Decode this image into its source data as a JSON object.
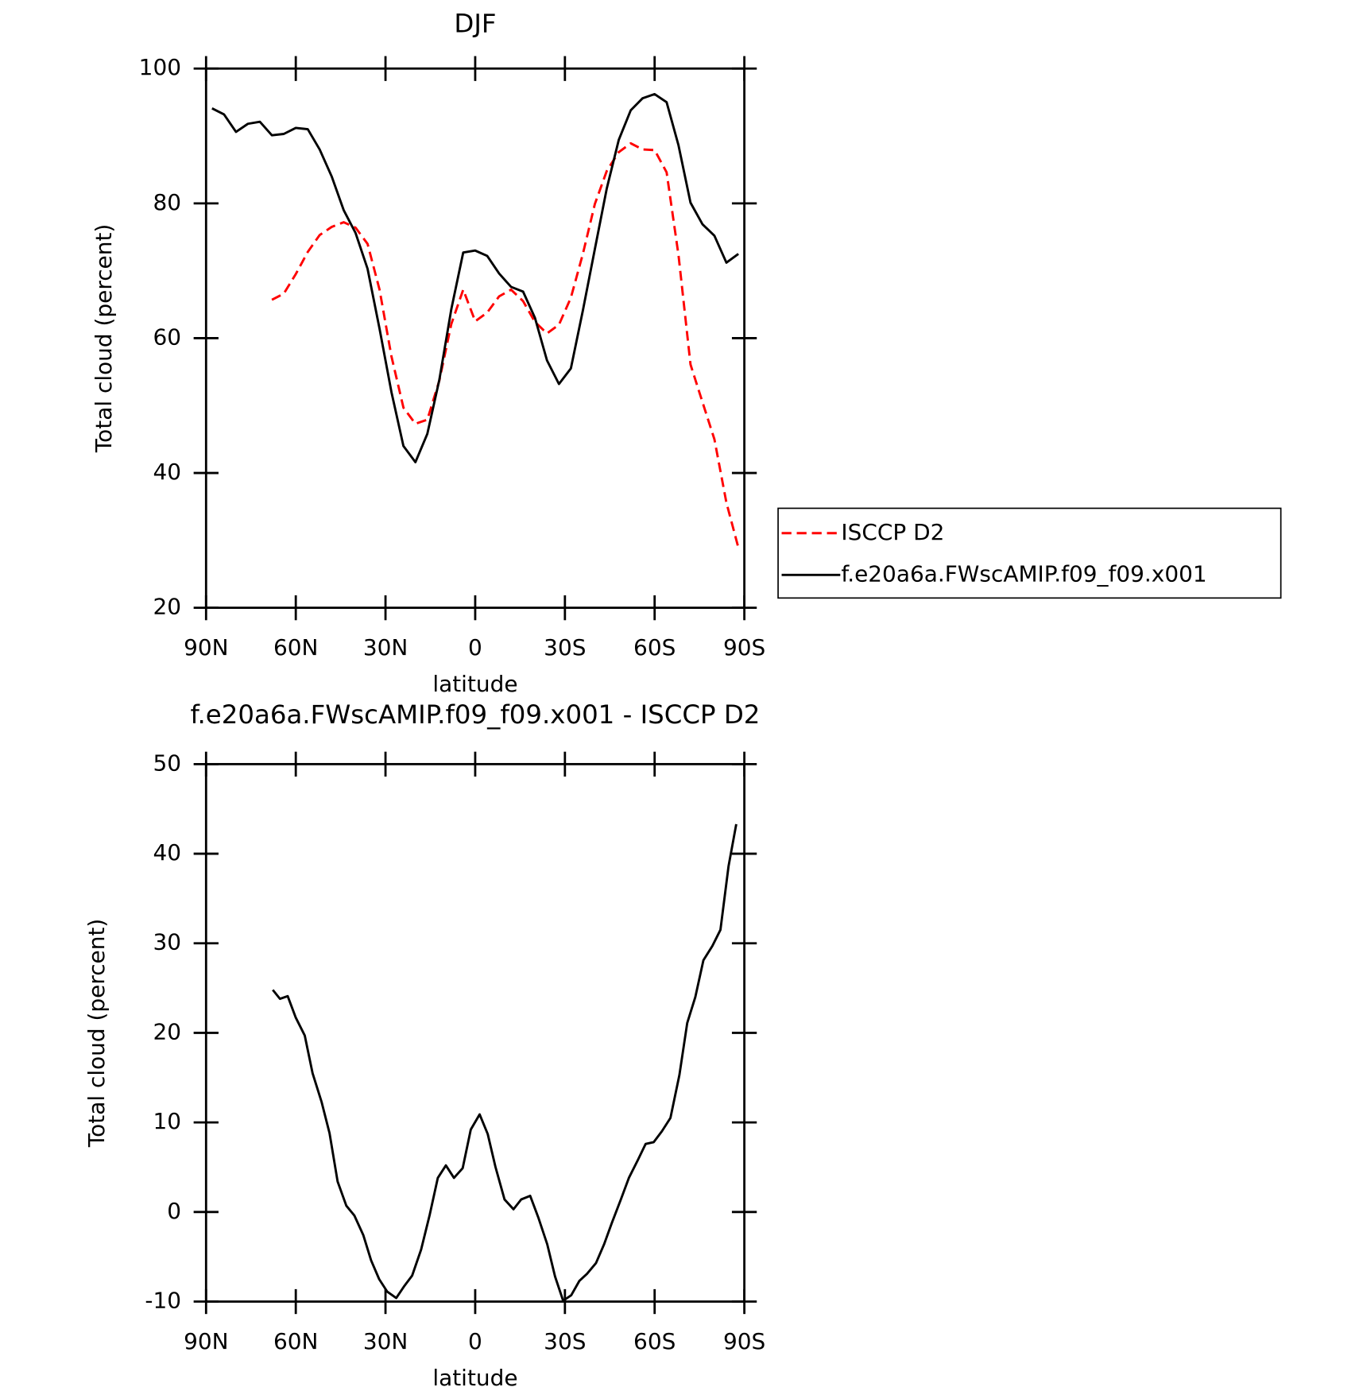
{
  "chart_data": [
    {
      "type": "line",
      "title": "DJF",
      "xlabel": "latitude",
      "ylabel": "Total cloud (percent)",
      "x": [
        88,
        84,
        80,
        76,
        72,
        68,
        64,
        60,
        56,
        52,
        48,
        44,
        40,
        36,
        32,
        28,
        24,
        20,
        16,
        12,
        8,
        4,
        0,
        -4,
        -8,
        -12,
        -16,
        -20,
        -24,
        -28,
        -32,
        -36,
        -40,
        -44,
        -48,
        -52,
        -56,
        -60,
        -64,
        -68,
        -72,
        -76,
        -80,
        -84,
        -88
      ],
      "xlim": [
        90,
        -90
      ],
      "xticks": [
        {
          "value": 90,
          "label": "90N"
        },
        {
          "value": 60,
          "label": "60N"
        },
        {
          "value": 30,
          "label": "30N"
        },
        0,
        {
          "value": -30,
          "label": "30S"
        },
        {
          "value": -60,
          "label": "60S"
        },
        {
          "value": -90,
          "label": "90S"
        }
      ],
      "ylim": [
        20,
        100
      ],
      "yticks": [
        20,
        40,
        60,
        80,
        100
      ],
      "legend": "right",
      "series": [
        {
          "name": "ISCCP D2",
          "color": "#ff0000",
          "dashed": true,
          "values": [
            null,
            null,
            null,
            null,
            null,
            65.7,
            66.6,
            69.5,
            72.8,
            75.3,
            76.5,
            77.2,
            76.4,
            74.0,
            67.2,
            57.3,
            49.7,
            47.3,
            47.9,
            53.7,
            62.1,
            67.2,
            62.5,
            63.8,
            66.2,
            67.2,
            65.5,
            62.4,
            60.7,
            62.0,
            66.0,
            72.5,
            79.9,
            84.8,
            87.6,
            88.9,
            88.0,
            87.9,
            84.6,
            72.3,
            56.1,
            50.5,
            45.0,
            35.6,
            28.9
          ]
        },
        {
          "name": "f.e20a6a.FWscAMIP.f09_f09.x001",
          "color": "#000000",
          "dashed": false,
          "values": [
            94.1,
            93.2,
            90.6,
            91.8,
            92.1,
            90.1,
            90.3,
            91.2,
            91.0,
            88.0,
            84.0,
            79.0,
            75.6,
            70.3,
            61.4,
            52.0,
            44.0,
            41.6,
            45.8,
            53.8,
            64.3,
            72.7,
            73.0,
            72.2,
            69.6,
            67.6,
            66.9,
            63.0,
            56.7,
            53.2,
            55.5,
            64.1,
            73.2,
            82.2,
            89.4,
            93.8,
            95.6,
            96.2,
            95.0,
            88.6,
            80.1,
            76.9,
            75.2,
            71.2,
            72.5
          ]
        }
      ]
    },
    {
      "type": "line",
      "title": "f.e20a6a.FWscAMIP.f09_f09.x001 - ISCCP D2",
      "xlabel": "latitude",
      "ylabel": "Total cloud (percent)",
      "x": [
        67.7,
        65.3,
        62.7,
        60,
        57,
        54.4,
        51.4,
        48.7,
        46,
        43.1,
        40.4,
        37.4,
        34.8,
        32.1,
        29.4,
        26.4,
        23.8,
        21.1,
        18.1,
        15.2,
        12.5,
        9.8,
        7.1,
        4.2,
        1.5,
        -1.5,
        -4.2,
        -6.8,
        -9.8,
        -12.8,
        -15.4,
        -18.4,
        -21.1,
        -24.1,
        -26.7,
        -29.4,
        -32.1,
        -34.8,
        -37.4,
        -40.4,
        -43.1,
        -45.7,
        -48.7,
        -51.4,
        -54.4,
        -57,
        -59.7,
        -62.4,
        -65.3,
        -68.3,
        -70.9,
        -73.6,
        -76.3,
        -79.3,
        -82,
        -84.7,
        -87.3
      ],
      "xlim": [
        90,
        -90
      ],
      "xticks": [
        {
          "value": 90,
          "label": "90N"
        },
        {
          "value": 60,
          "label": "60N"
        },
        {
          "value": 30,
          "label": "30N"
        },
        0,
        {
          "value": -30,
          "label": "30S"
        },
        {
          "value": -60,
          "label": "60S"
        },
        {
          "value": -90,
          "label": "90S"
        }
      ],
      "ylim": [
        -10,
        50
      ],
      "yticks": [
        -10,
        0,
        10,
        20,
        30,
        40,
        50
      ],
      "series": [
        {
          "color": "#000000",
          "dashed": false,
          "values": [
            24.8,
            23.8,
            24.1,
            21.7,
            19.7,
            15.5,
            12.3,
            8.8,
            3.4,
            0.7,
            -0.4,
            -2.6,
            -5.4,
            -7.5,
            -8.9,
            -9.6,
            -8.3,
            -7.1,
            -4.2,
            -0.3,
            3.8,
            5.2,
            3.8,
            4.9,
            9.2,
            10.9,
            8.7,
            5.0,
            1.4,
            0.3,
            1.4,
            1.8,
            -0.6,
            -3.6,
            -7.2,
            -9.9,
            -9.3,
            -7.7,
            -6.9,
            -5.7,
            -3.6,
            -1.2,
            1.4,
            3.8,
            5.8,
            7.6,
            7.8,
            9.0,
            10.5,
            15.3,
            21.1,
            24.0,
            28.1,
            29.7,
            31.5,
            38.6,
            43.3
          ]
        }
      ]
    }
  ]
}
